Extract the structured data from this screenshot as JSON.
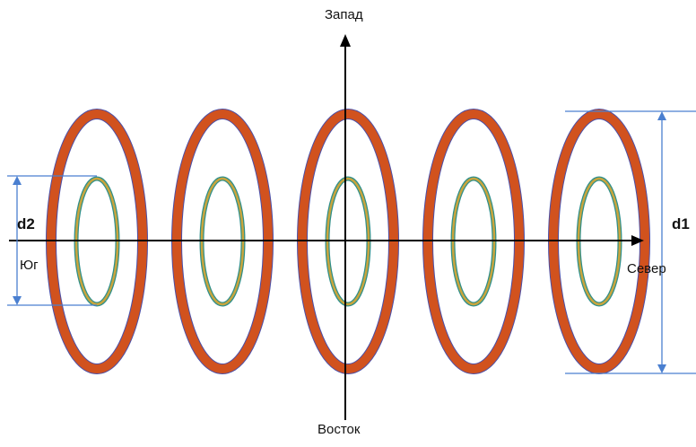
{
  "directions": {
    "top": "Запад",
    "bottom": "Восток",
    "left": "Юг",
    "right": "Север"
  },
  "dimensions": {
    "outer": "d1",
    "inner": "d2"
  },
  "ring_count": 5,
  "colors": {
    "outer_ring_fill": "#d1521e",
    "ring_outline": "#4a4fa8",
    "inner_ring_fill": "#c9a53d",
    "inner_ring_outline": "#2f8f8a",
    "axis": "#000000",
    "dimension_line": "#4a7fd0"
  }
}
